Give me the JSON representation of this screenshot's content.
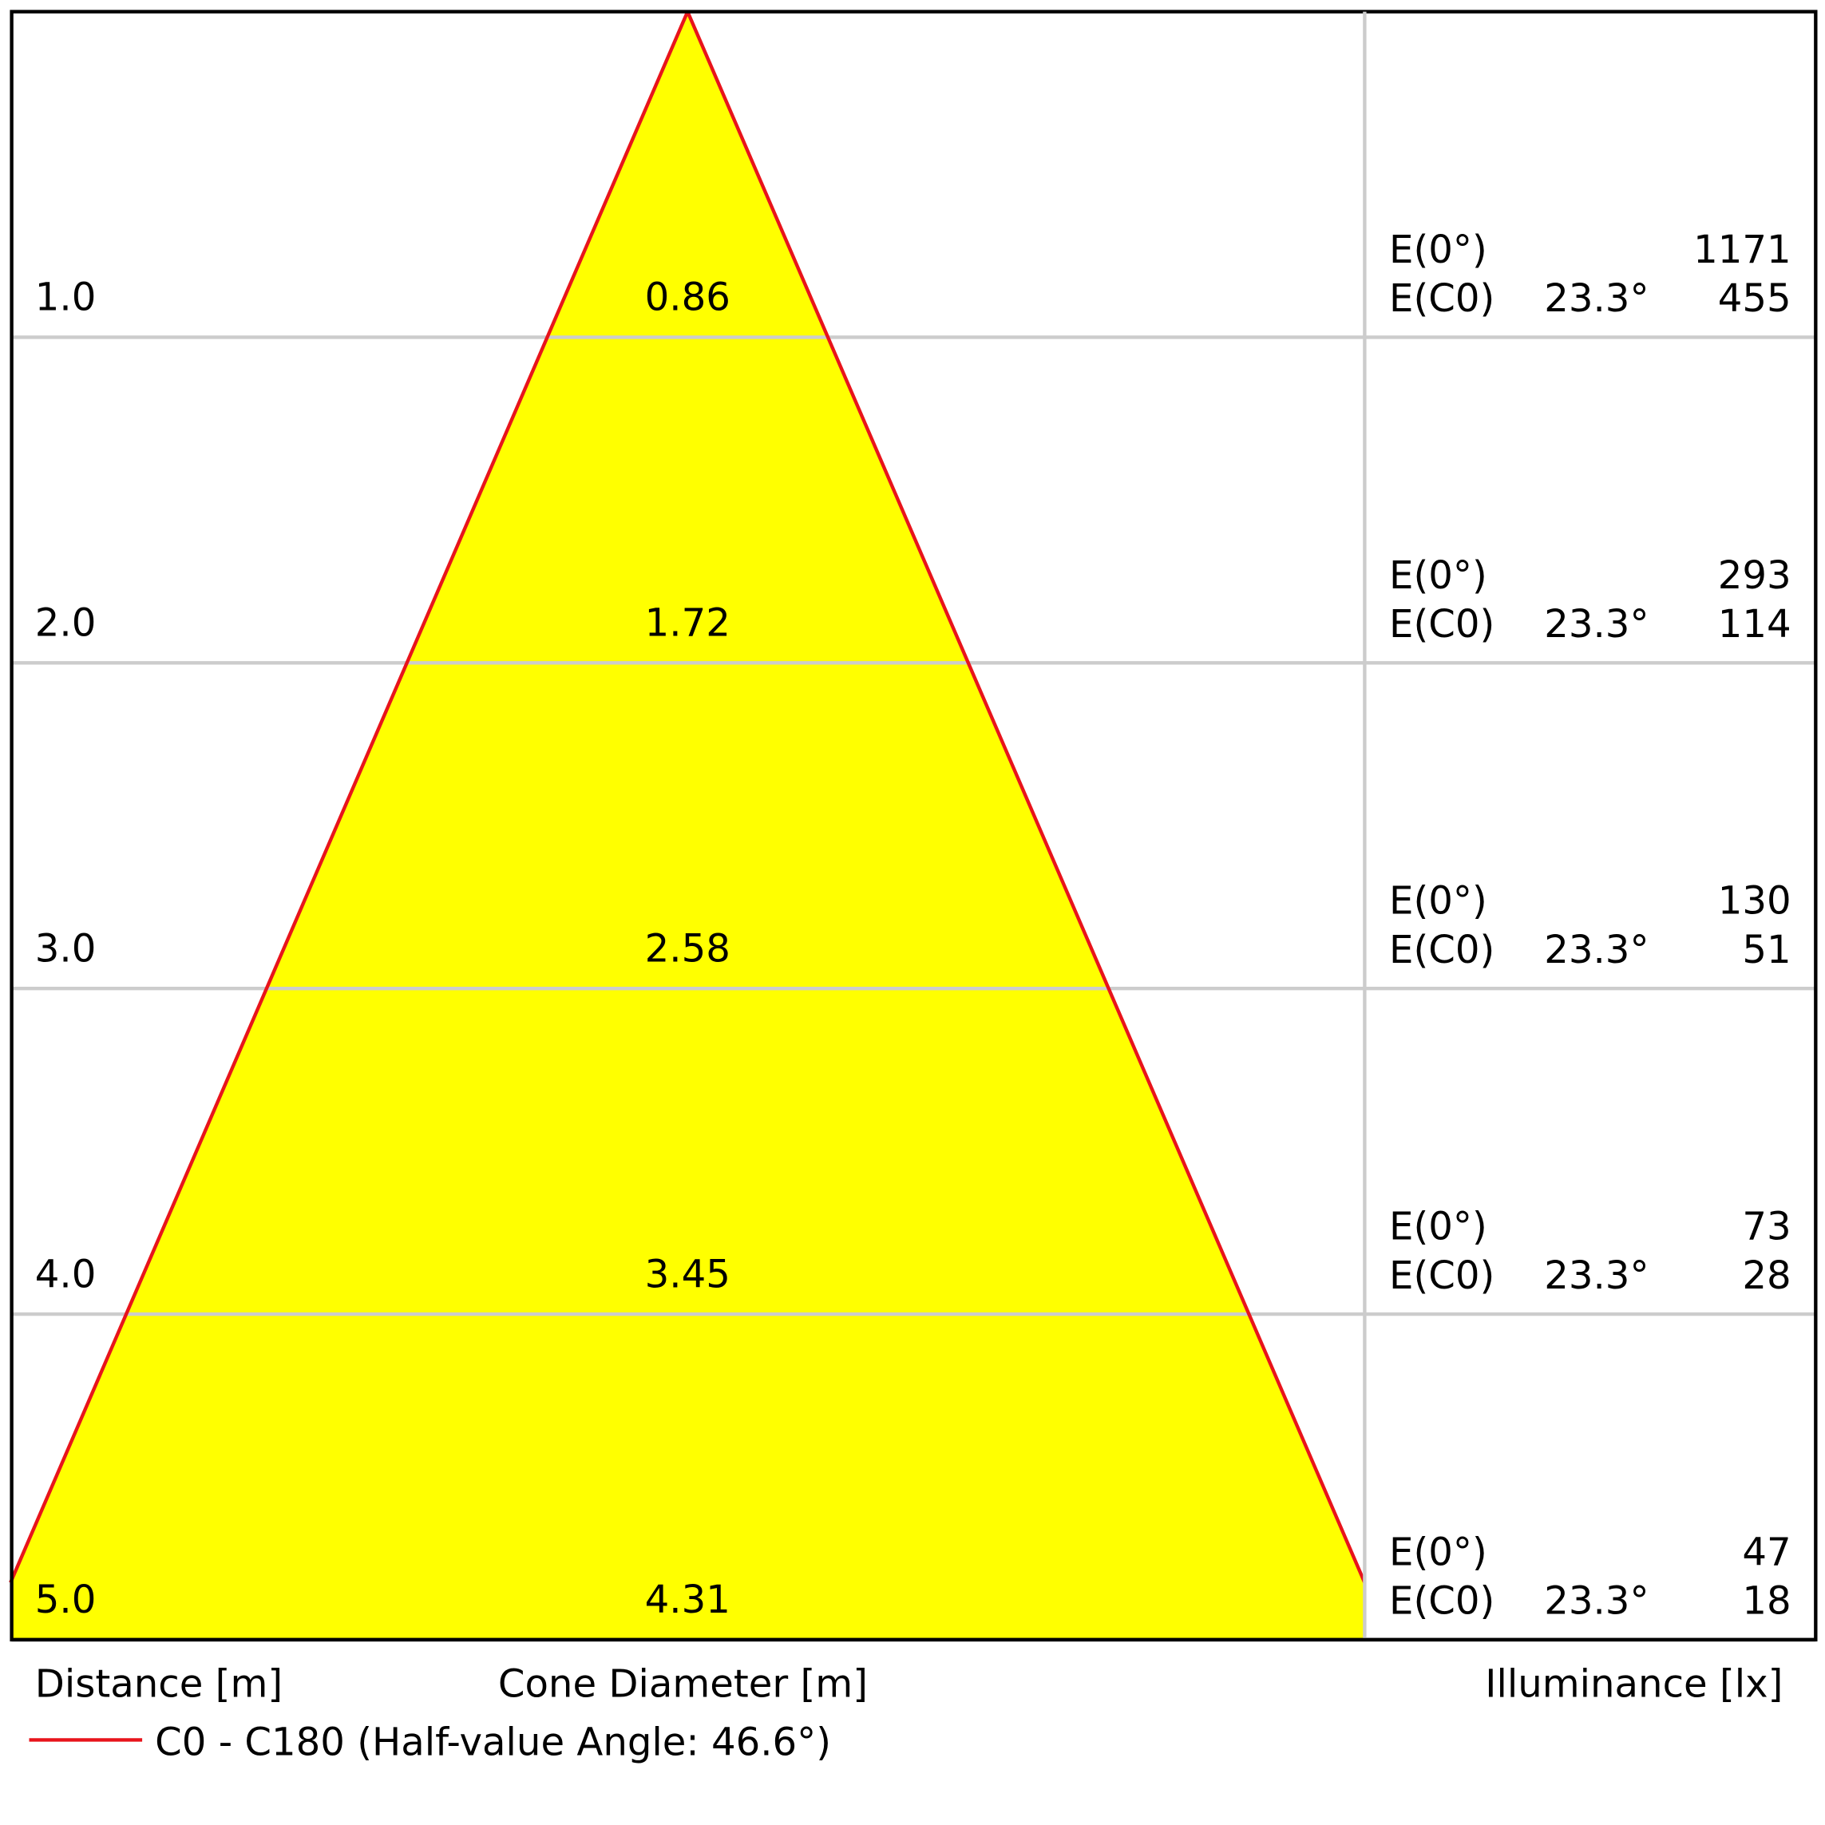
{
  "chart_data": {
    "type": "cone",
    "distance_label": "Distance [m]",
    "diameter_label": "Cone Diameter [m]",
    "illuminance_label": "Illuminance [lx]",
    "e0_label": "E(0°)",
    "ec0_label": "E(C0)",
    "legend": {
      "label": "C0 - C180 (Half-value Angle: 46.6°)",
      "color": "#e8141b"
    },
    "fill_color": "#ffff00",
    "rows": [
      {
        "distance": {
          "value": 1,
          "label": "1.0"
        },
        "diameter": 0.86,
        "e0": 1171,
        "ec0": 455,
        "angle": {
          "value": 23.3,
          "label": "23.3°"
        }
      },
      {
        "distance": {
          "value": 2,
          "label": "2.0"
        },
        "diameter": 1.72,
        "e0": 293,
        "ec0": 114,
        "angle": {
          "value": 23.3,
          "label": "23.3°"
        }
      },
      {
        "distance": {
          "value": 3,
          "label": "3.0"
        },
        "diameter": 2.58,
        "e0": 130,
        "ec0": 51,
        "angle": {
          "value": 23.3,
          "label": "23.3°"
        }
      },
      {
        "distance": {
          "value": 4,
          "label": "4.0"
        },
        "diameter": 3.45,
        "e0": 73,
        "ec0": 28,
        "angle": {
          "value": 23.3,
          "label": "23.3°"
        }
      },
      {
        "distance": {
          "value": 5,
          "label": "5.0"
        },
        "diameter": 4.31,
        "e0": 47,
        "ec0": 18,
        "angle": {
          "value": 23.3,
          "label": "23.3°"
        }
      }
    ]
  }
}
